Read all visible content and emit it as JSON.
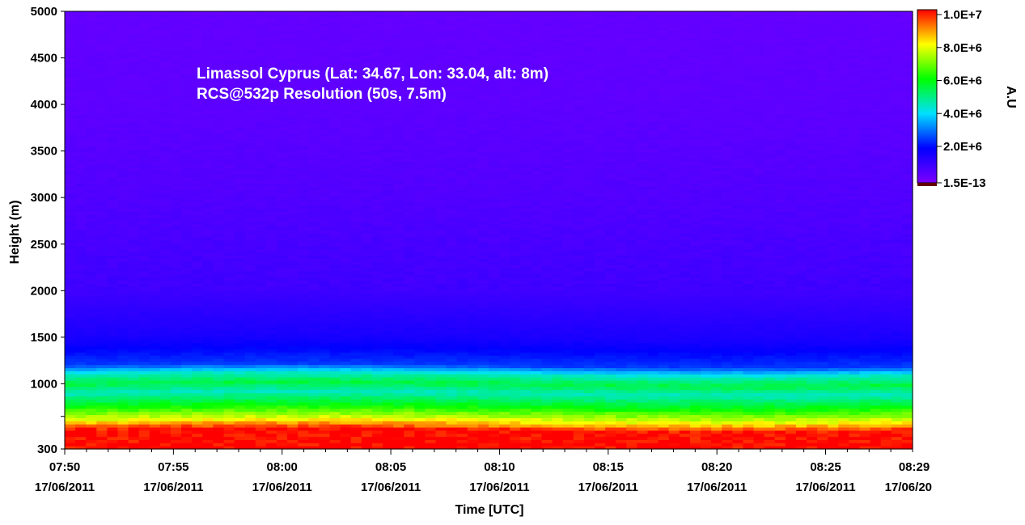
{
  "chart_data": {
    "type": "heatmap",
    "annotation_lines": [
      "Limassol Cyprus (Lat: 34.67, Lon: 33.04, alt: 8m)",
      "RCS@532p Resolution (50s, 7.5m)"
    ],
    "xlabel": "Time [UTC]",
    "ylabel": "Height (m)",
    "colorbar_label": "A.U",
    "x_ticks": [
      {
        "time": "07:50",
        "date": "17/06/2011",
        "minutes": 0
      },
      {
        "time": "07:55",
        "date": "17/06/2011",
        "minutes": 5
      },
      {
        "time": "08:00",
        "date": "17/06/2011",
        "minutes": 10
      },
      {
        "time": "08:05",
        "date": "17/06/2011",
        "minutes": 15
      },
      {
        "time": "08:10",
        "date": "17/06/2011",
        "minutes": 20
      },
      {
        "time": "08:15",
        "date": "17/06/2011",
        "minutes": 25
      },
      {
        "time": "08:20",
        "date": "17/06/2011",
        "minutes": 30
      },
      {
        "time": "08:25",
        "date": "17/06/2011",
        "minutes": 35
      },
      {
        "time": "08:29",
        "date": "17/06/20",
        "minutes": 39
      }
    ],
    "xlim_minutes": [
      0,
      39
    ],
    "y_ticks": [
      "300",
      "1000",
      "1500",
      "2000",
      "2500",
      "3000",
      "3500",
      "4000",
      "4500",
      "5000"
    ],
    "ylim": [
      300,
      5000
    ],
    "colorbar_ticks": [
      "1.0E+7",
      "8.0E+6",
      "6.0E+6",
      "4.0E+6",
      "2.0E+6",
      "1.5E-13"
    ],
    "colorbar_range": [
      1.5e-13,
      10000000.0
    ],
    "colormap": [
      "#7d00ff",
      "#0000ff",
      "#00e0ff",
      "#00ff00",
      "#ffff00",
      "#ff0000"
    ],
    "profile_heights_m": [
      300,
      500,
      600,
      750,
      900,
      1000,
      1100,
      1200,
      1500,
      2000,
      3000,
      4000,
      5000
    ],
    "profile_values": [
      10000000,
      10000000,
      8000000,
      6000000,
      4500000,
      5500000,
      4500000,
      2500000,
      1600000,
      1000000,
      700000,
      500000,
      400000
    ]
  }
}
